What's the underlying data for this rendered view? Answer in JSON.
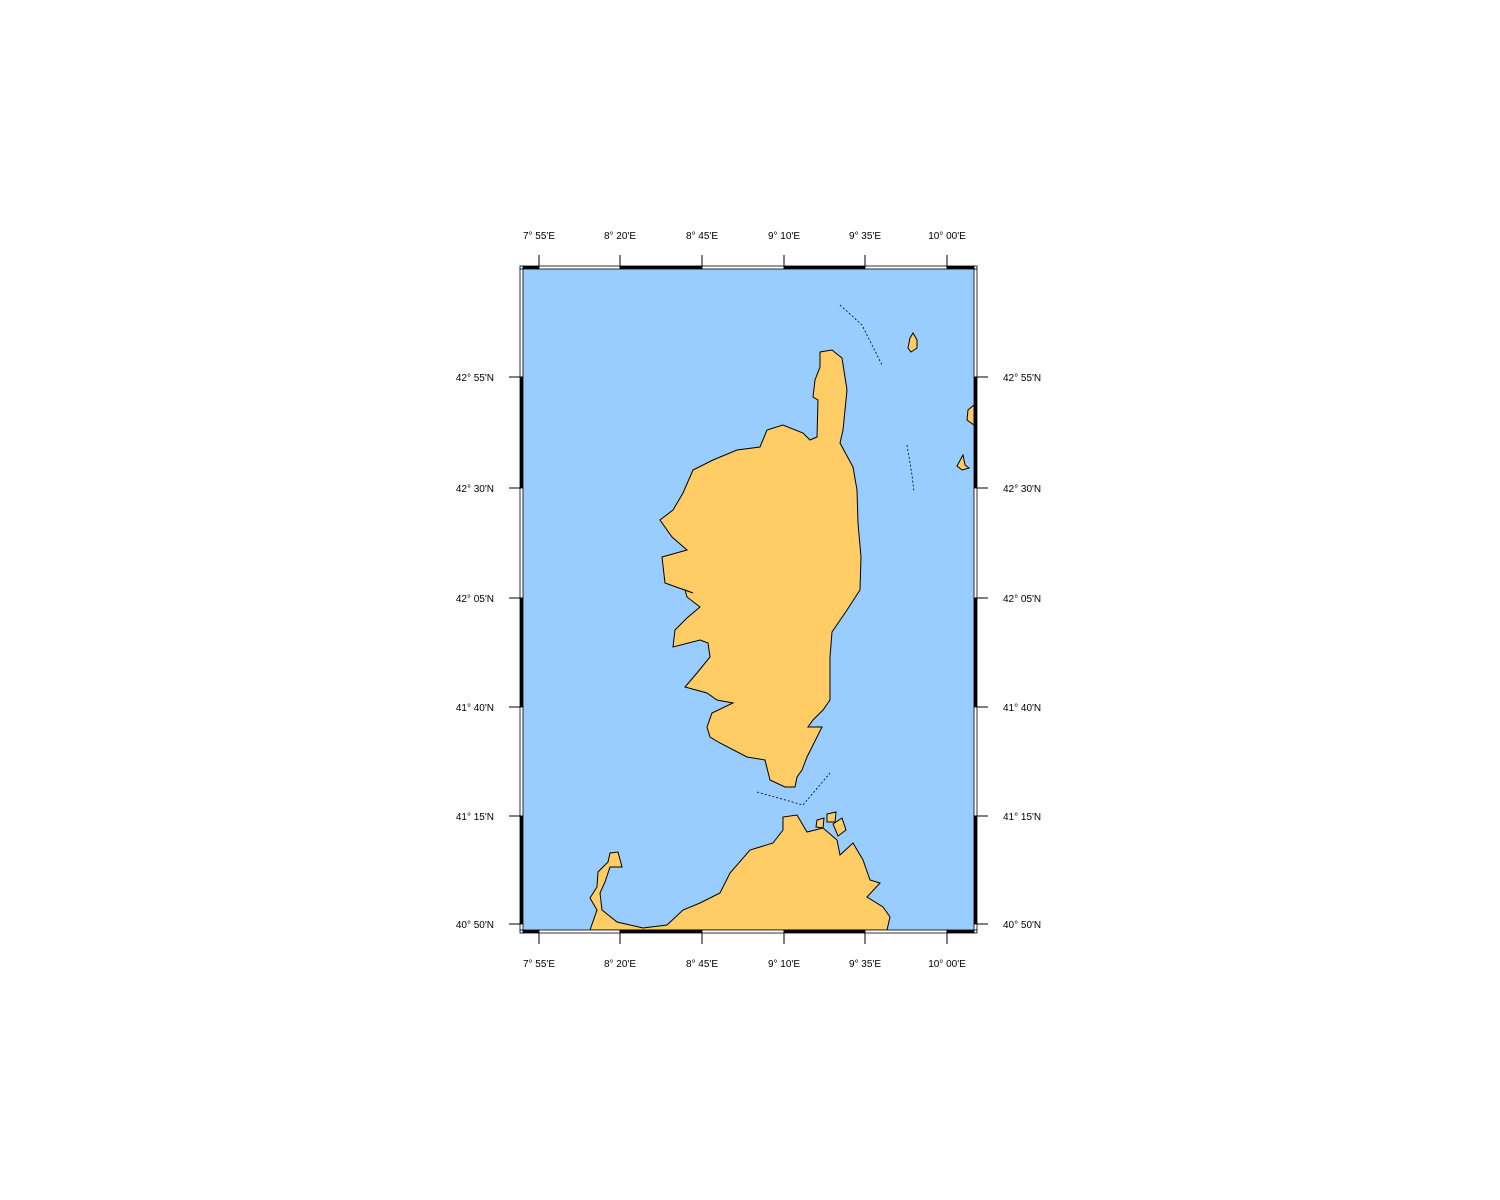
{
  "map": {
    "colors": {
      "water": "#99ccff",
      "land": "#ffcc66",
      "coastline": "#000000",
      "frame": "#000000"
    },
    "longitude_labels": [
      "7° 55'E",
      "8° 20'E",
      "8° 45'E",
      "9° 10'E",
      "9° 35'E",
      "10° 00'E"
    ],
    "latitude_labels": [
      "42° 55'N",
      "42° 30'N",
      "42° 05'N",
      "41° 40'N",
      "41° 15'N",
      "40° 50'N"
    ]
  }
}
